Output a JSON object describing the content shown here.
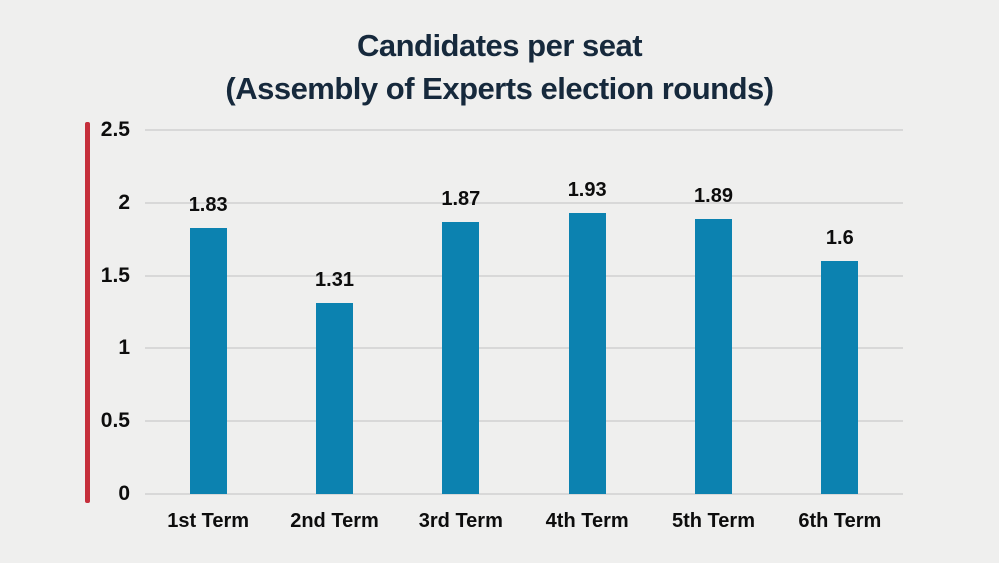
{
  "chart_data": {
    "type": "bar",
    "title_lines": [
      "Candidates per seat",
      "(Assembly of Experts election rounds)"
    ],
    "categories": [
      "1st Term",
      "2nd Term",
      "3rd Term",
      "4th Term",
      "5th Term",
      "6th Term"
    ],
    "values": [
      1.83,
      1.31,
      1.87,
      1.93,
      1.89,
      1.6
    ],
    "value_labels": [
      "1.83",
      "1.31",
      "1.87",
      "1.93",
      "1.89",
      "1.6"
    ],
    "xlabel": "",
    "ylabel": "",
    "ylim": [
      0,
      2.5
    ],
    "yticks": [
      0,
      0.5,
      1,
      1.5,
      2,
      2.5
    ],
    "ytick_labels": [
      "0",
      "0.5",
      "1",
      "1.5",
      "2",
      "2.5"
    ],
    "grid": true,
    "legend": "none",
    "colors": {
      "background": "#efefee",
      "bar": "#0c82b0",
      "axis_line": "#c52f3b",
      "grid": "#d8d8d8",
      "title": "#16293c",
      "text": "#0d0d0d"
    }
  }
}
